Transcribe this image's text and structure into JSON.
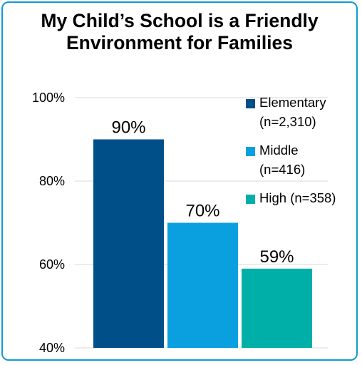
{
  "chart_data": {
    "type": "bar",
    "title": "My Child’s School is a Friendly Environment for Families",
    "categories": [
      "Elementary (n=2,310)",
      "Middle (n=416)",
      "High (n=358)"
    ],
    "values": [
      90,
      70,
      59
    ],
    "data_labels": [
      "90%",
      "70%",
      "59%"
    ],
    "colors": [
      "#004f88",
      "#0aa0e0",
      "#00b0a8"
    ],
    "ylim": [
      40,
      100
    ],
    "yticks": [
      {
        "value": 40,
        "label": "40%"
      },
      {
        "value": 60,
        "label": "60%"
      },
      {
        "value": 80,
        "label": "80%"
      },
      {
        "value": 100,
        "label": "100%"
      }
    ],
    "grid": true,
    "legend": {
      "placement": "right",
      "entries": [
        {
          "lines": [
            "Elementary",
            "(n=2,310)"
          ],
          "color": "#004f88"
        },
        {
          "lines": [
            "Middle",
            "(n=416)"
          ],
          "color": "#0aa0e0"
        },
        {
          "lines": [
            "High (n=358)"
          ],
          "color": "#00b0a8"
        }
      ]
    }
  }
}
